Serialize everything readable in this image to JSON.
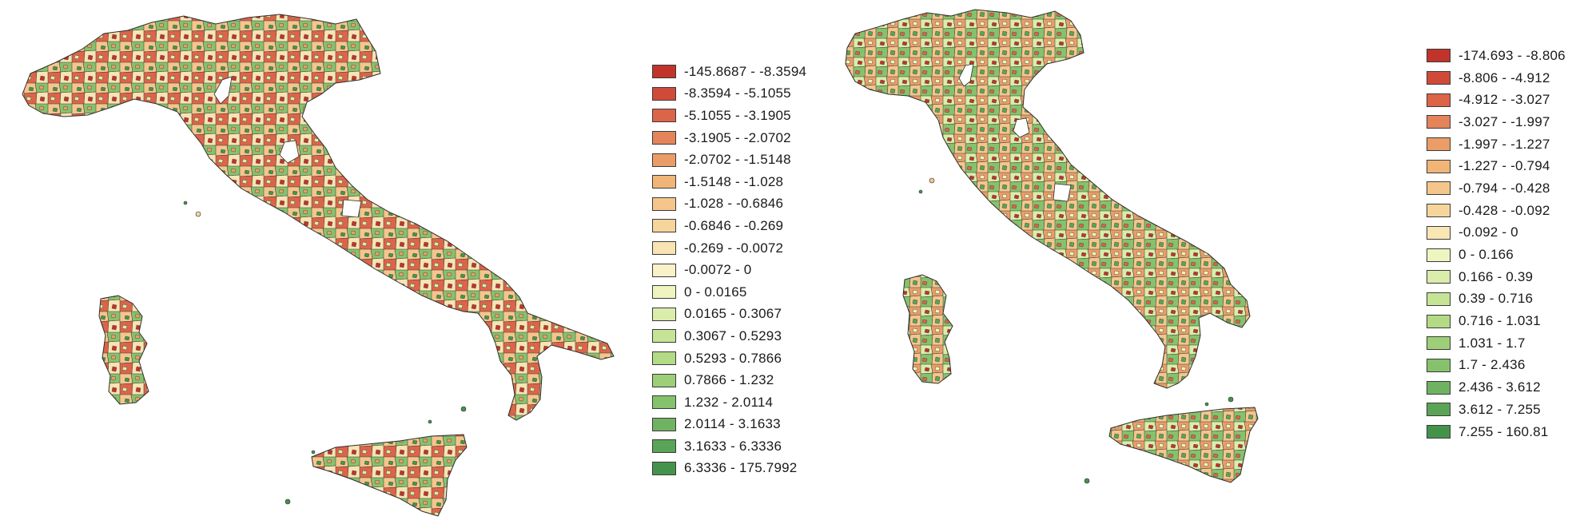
{
  "figure": {
    "maps": [
      {
        "id": "left",
        "legend": [
          {
            "label": "-145.8687 - -8.3594",
            "color": "#c0342b"
          },
          {
            "label": "-8.3594 - -5.1055",
            "color": "#d04a3a"
          },
          {
            "label": "-5.1055 - -3.1905",
            "color": "#dc6449"
          },
          {
            "label": "-3.1905 - -2.0702",
            "color": "#e4845a"
          },
          {
            "label": "-2.0702 - -1.5148",
            "color": "#eb9d68"
          },
          {
            "label": "-1.5148 - -1.028",
            "color": "#f1b578"
          },
          {
            "label": "-1.028 - -0.6846",
            "color": "#f4c68c"
          },
          {
            "label": "-0.6846 - -0.269",
            "color": "#f6d59d"
          },
          {
            "label": "-0.269 - -0.0072",
            "color": "#f8e3b2"
          },
          {
            "label": "-0.0072 - 0",
            "color": "#fbf1c8"
          },
          {
            "label": "0 - 0.0165",
            "color": "#eef5c0"
          },
          {
            "label": "0.0165 - 0.3067",
            "color": "#daedaa"
          },
          {
            "label": "0.3067 - 0.5293",
            "color": "#c6e496"
          },
          {
            "label": "0.5293 - 0.7866",
            "color": "#b3da85"
          },
          {
            "label": "0.7866 - 1.232",
            "color": "#9ccf77"
          },
          {
            "label": "1.232 - 2.0114",
            "color": "#86c26c"
          },
          {
            "label": "2.0114 - 3.1633",
            "color": "#6fb362"
          },
          {
            "label": "3.1633 - 6.3336",
            "color": "#5aa457"
          },
          {
            "label": "6.3336 - 175.7992",
            "color": "#45934b"
          }
        ]
      },
      {
        "id": "right",
        "legend": [
          {
            "label": "-174.693 - -8.806",
            "color": "#c0342b"
          },
          {
            "label": "-8.806 - -4.912",
            "color": "#d04a3a"
          },
          {
            "label": "-4.912 - -3.027",
            "color": "#dc6449"
          },
          {
            "label": "-3.027 - -1.997",
            "color": "#e4845a"
          },
          {
            "label": "-1.997 - -1.227",
            "color": "#eb9d68"
          },
          {
            "label": "-1.227 - -0.794",
            "color": "#f1b578"
          },
          {
            "label": "-0.794 - -0.428",
            "color": "#f4c68c"
          },
          {
            "label": "-0.428 - -0.092",
            "color": "#f6d59d"
          },
          {
            "label": "-0.092 - 0",
            "color": "#f9e6b5"
          },
          {
            "label": "0 - 0.166",
            "color": "#eef5c0"
          },
          {
            "label": "0.166 - 0.39",
            "color": "#daedaa"
          },
          {
            "label": "0.39 - 0.716",
            "color": "#c6e496"
          },
          {
            "label": "0.716 - 1.031",
            "color": "#b3da85"
          },
          {
            "label": "1.031 - 1.7",
            "color": "#9ccf77"
          },
          {
            "label": "1.7 - 2.436",
            "color": "#86c26c"
          },
          {
            "label": "2.436 - 3.612",
            "color": "#6fb362"
          },
          {
            "label": "3.612 - 7.255",
            "color": "#5aa457"
          },
          {
            "label": "7.255 - 160.81",
            "color": "#45934b"
          }
        ]
      }
    ],
    "border_color": "#2e2e2e",
    "lake_color": "#ffffff"
  }
}
